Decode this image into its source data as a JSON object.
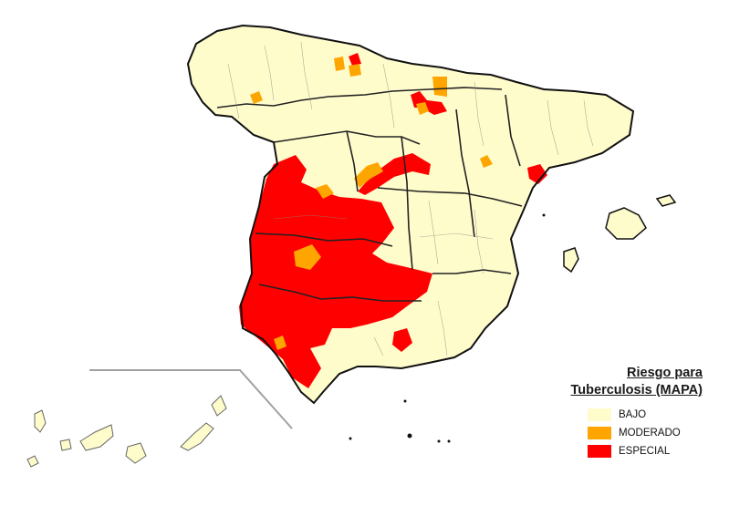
{
  "legend": {
    "title_line1": "Riesgo para",
    "title_line2": "Tuberculosis (MAPA)",
    "items": [
      {
        "label": "BAJO",
        "color": "#fffccc"
      },
      {
        "label": "MODERADO",
        "color": "#ffa500"
      },
      {
        "label": "ESPECIAL",
        "color": "#ff0000"
      }
    ]
  },
  "colors": {
    "low": "#fffccc",
    "moderate": "#ffa500",
    "special": "#ff0000",
    "border": "#111111",
    "inset_line": "#a0a0a0"
  }
}
